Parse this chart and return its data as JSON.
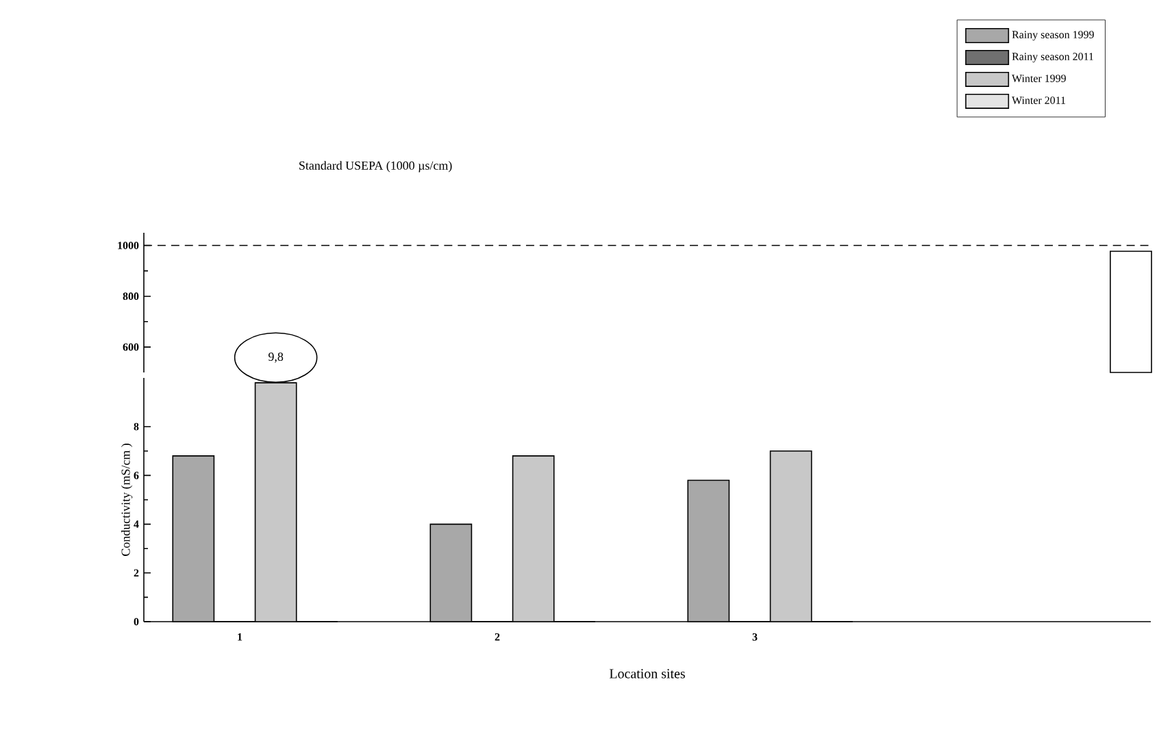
{
  "chart_data": [
    {
      "type": "bar",
      "categories": [
        null,
        null,
        null,
        null
      ],
      "ylim": [
        500,
        1050
      ],
      "yticks": [
        600,
        800,
        1000
      ],
      "tick_labels": "y",
      "series": [
        {
          "color": "#ffffff",
          "values": [
            null,
            null,
            null,
            977
          ]
        }
      ],
      "ref_lines": [
        {
          "axis": "y",
          "value": 1000,
          "label": "Standard USEPA (1000 µs/cm)",
          "line_style": "dashed"
        }
      ]
    },
    {
      "type": "bar",
      "categories": [
        "1",
        "2",
        "3",
        null
      ],
      "ylim": [
        0,
        10
      ],
      "yticks": [
        0,
        2,
        4,
        6,
        8
      ],
      "xlabel": "Location sites",
      "ylabel": "Conductivity (mS/cm )",
      "legend": "top right",
      "series": [
        {
          "name": "Rainy season 1999",
          "color": "#a8a8a8",
          "values": [
            6.8,
            4.0,
            5.8,
            null
          ]
        },
        {
          "name": "Rainy season 2011",
          "color": "#707070",
          "values": [
            0,
            0,
            0,
            null
          ]
        },
        {
          "name": "Winter 1999",
          "color": "#c8c8c8",
          "values": [
            9.8,
            6.8,
            7.0,
            null
          ]
        },
        {
          "name": "Winter 2011",
          "color": "#e4e4e4",
          "values": [
            0,
            0,
            0,
            null
          ]
        }
      ],
      "annotations": [
        "9,8"
      ]
    }
  ]
}
